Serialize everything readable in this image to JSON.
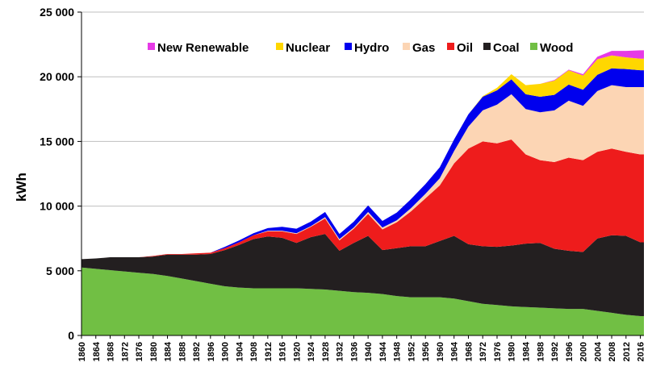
{
  "chart_data": {
    "type": "area",
    "stacked": true,
    "title": "",
    "xlabel": "",
    "ylabel": "kWh",
    "xlim": [
      1860,
      2017
    ],
    "ylim": [
      0,
      25000
    ],
    "y_ticks": [
      0,
      5000,
      10000,
      15000,
      20000,
      25000
    ],
    "y_tick_labels": [
      "0",
      "5 000",
      "10 000",
      "15 000",
      "20 000",
      "25 000"
    ],
    "x_tick_labels": [
      "1860",
      "1864",
      "1868",
      "1872",
      "1876",
      "1880",
      "1884",
      "1888",
      "1892",
      "1896",
      "1900",
      "1904",
      "1908",
      "1912",
      "1916",
      "1920",
      "1924",
      "1928",
      "1932",
      "1936",
      "1940",
      "1944",
      "1948",
      "1952",
      "1956",
      "1960",
      "1964",
      "1968",
      "1972",
      "1976",
      "1980",
      "1984",
      "1988",
      "1992",
      "1996",
      "2000",
      "2004",
      "2008",
      "2012",
      "2016"
    ],
    "grid": "horizontal",
    "legend_position": "top-right",
    "legend_order": [
      "New Renewable",
      "Nuclear",
      "Hydro",
      "Gas",
      "Oil",
      "Coal",
      "Wood"
    ],
    "years": [
      1860,
      1864,
      1868,
      1872,
      1876,
      1880,
      1884,
      1888,
      1892,
      1896,
      1900,
      1904,
      1908,
      1912,
      1916,
      1920,
      1924,
      1928,
      1932,
      1936,
      1940,
      1944,
      1948,
      1952,
      1956,
      1960,
      1964,
      1968,
      1972,
      1976,
      1980,
      1984,
      1988,
      1992,
      1996,
      2000,
      2004,
      2008,
      2012,
      2016
    ],
    "series": [
      {
        "name": "Wood",
        "color": "#71bf44",
        "values": [
          5250,
          5150,
          5050,
          4950,
          4850,
          4750,
          4600,
          4400,
          4200,
          4000,
          3800,
          3700,
          3650,
          3650,
          3650,
          3650,
          3600,
          3550,
          3450,
          3350,
          3300,
          3200,
          3050,
          2950,
          2950,
          2950,
          2850,
          2650,
          2450,
          2350,
          2250,
          2200,
          2150,
          2100,
          2050,
          2050,
          1900,
          1750,
          1600,
          1500
        ]
      },
      {
        "name": "Coal",
        "color": "#231f20",
        "values": [
          650,
          800,
          1000,
          1100,
          1200,
          1350,
          1650,
          1850,
          2050,
          2300,
          2800,
          3300,
          3800,
          4000,
          3900,
          3500,
          4000,
          4300,
          3100,
          3800,
          4400,
          3400,
          3700,
          3950,
          3950,
          4350,
          4850,
          4400,
          4450,
          4500,
          4700,
          4900,
          5000,
          4600,
          4500,
          4400,
          5600,
          6000,
          6100,
          5700
        ]
      },
      {
        "name": "Oil",
        "color": "#ee1c1c",
        "values": [
          0,
          0,
          0,
          0,
          0,
          50,
          50,
          50,
          100,
          100,
          150,
          200,
          300,
          400,
          500,
          700,
          800,
          1200,
          800,
          1100,
          1700,
          1600,
          2000,
          2700,
          3700,
          4300,
          5600,
          7400,
          8100,
          8000,
          8200,
          6900,
          6400,
          6700,
          7200,
          7100,
          6700,
          6700,
          6500,
          6800
        ]
      },
      {
        "name": "Gas",
        "color": "#fcd5b4",
        "values": [
          0,
          0,
          0,
          0,
          0,
          0,
          0,
          0,
          0,
          0,
          0,
          0,
          0,
          50,
          50,
          50,
          50,
          100,
          100,
          100,
          150,
          150,
          150,
          250,
          350,
          550,
          950,
          1700,
          2400,
          3000,
          3500,
          3500,
          3700,
          4000,
          4400,
          4200,
          4700,
          4900,
          5000,
          5200
        ]
      },
      {
        "name": "Hydro",
        "color": "#0000ee",
        "values": [
          0,
          0,
          0,
          0,
          0,
          0,
          0,
          0,
          0,
          0,
          100,
          150,
          150,
          200,
          300,
          350,
          350,
          400,
          400,
          450,
          500,
          500,
          600,
          700,
          750,
          850,
          900,
          950,
          1050,
          1100,
          1150,
          1150,
          1200,
          1200,
          1250,
          1250,
          1250,
          1300,
          1400,
          1300
        ]
      },
      {
        "name": "Nuclear",
        "color": "#ffd700",
        "values": [
          0,
          0,
          0,
          0,
          0,
          0,
          0,
          0,
          0,
          0,
          0,
          0,
          0,
          0,
          0,
          0,
          0,
          0,
          0,
          0,
          0,
          0,
          0,
          0,
          0,
          0,
          0,
          0,
          50,
          200,
          400,
          700,
          1000,
          1100,
          1100,
          1100,
          1200,
          1000,
          900,
          900
        ]
      },
      {
        "name": "New Renewable",
        "color": "#e63ae6",
        "values": [
          0,
          0,
          0,
          0,
          0,
          0,
          0,
          0,
          0,
          0,
          0,
          0,
          0,
          0,
          0,
          0,
          0,
          0,
          0,
          0,
          0,
          0,
          0,
          0,
          0,
          0,
          0,
          0,
          0,
          0,
          0,
          0,
          0,
          50,
          50,
          100,
          200,
          350,
          500,
          650
        ]
      }
    ]
  }
}
